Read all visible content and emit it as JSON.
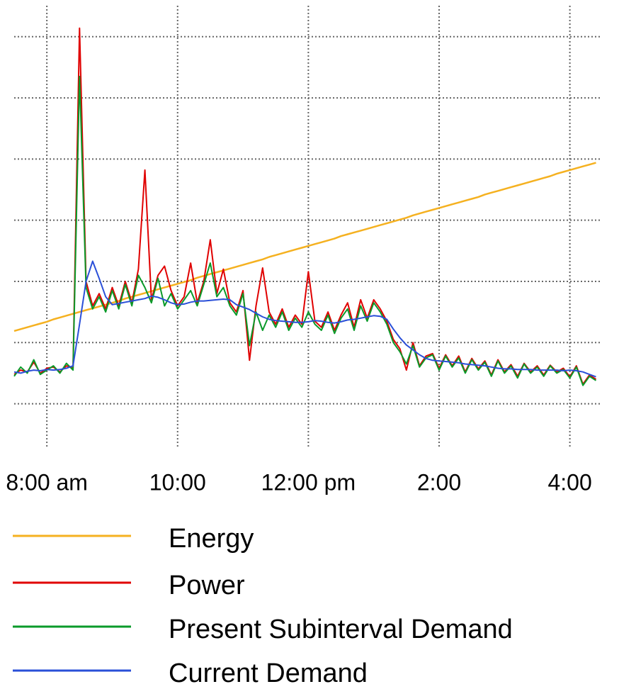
{
  "chart_data": {
    "type": "line",
    "x": [
      7.5,
      7.6,
      7.7,
      7.8,
      7.9,
      8.0,
      8.1,
      8.2,
      8.3,
      8.4,
      8.5,
      8.6,
      8.7,
      8.8,
      8.9,
      9.0,
      9.1,
      9.2,
      9.3,
      9.4,
      9.5,
      9.6,
      9.7,
      9.8,
      9.9,
      10.0,
      10.1,
      10.2,
      10.3,
      10.4,
      10.5,
      10.6,
      10.7,
      10.8,
      10.9,
      11.0,
      11.1,
      11.2,
      11.3,
      11.4,
      11.5,
      11.6,
      11.7,
      11.8,
      11.9,
      12.0,
      12.1,
      12.2,
      12.3,
      12.4,
      12.5,
      12.6,
      12.7,
      12.8,
      12.9,
      13.0,
      13.1,
      13.2,
      13.3,
      13.4,
      13.5,
      13.6,
      13.7,
      13.8,
      13.9,
      14.0,
      14.1,
      14.2,
      14.3,
      14.4,
      14.5,
      14.6,
      14.7,
      14.8,
      14.9,
      15.0,
      15.1,
      15.2,
      15.3,
      15.4,
      15.5,
      15.6,
      15.7,
      15.8,
      15.9,
      16.0,
      16.1,
      16.2,
      16.3,
      16.4
    ],
    "xlim": [
      7.5,
      16.47
    ],
    "xticks": [
      {
        "value": 8,
        "label": "8:00 am"
      },
      {
        "value": 10,
        "label": "10:00"
      },
      {
        "value": 12,
        "label": "12:00 pm"
      },
      {
        "value": 14,
        "label": "2:00"
      },
      {
        "value": 16,
        "label": "4:00"
      }
    ],
    "ylim": [
      0.3,
      7.6
    ],
    "yticks": [
      1,
      2,
      3,
      4,
      5,
      6,
      7
    ],
    "grid": true,
    "series": [
      {
        "name": "Energy",
        "color": "#f5b120",
        "values": [
          2.19,
          2.22,
          2.25,
          2.28,
          2.31,
          2.34,
          2.38,
          2.41,
          2.44,
          2.47,
          2.5,
          2.53,
          2.56,
          2.59,
          2.62,
          2.65,
          2.68,
          2.72,
          2.75,
          2.78,
          2.81,
          2.84,
          2.87,
          2.9,
          2.93,
          2.96,
          2.99,
          3.02,
          3.06,
          3.09,
          3.12,
          3.15,
          3.18,
          3.21,
          3.24,
          3.27,
          3.3,
          3.33,
          3.36,
          3.4,
          3.43,
          3.46,
          3.49,
          3.52,
          3.55,
          3.58,
          3.61,
          3.64,
          3.67,
          3.7,
          3.74,
          3.77,
          3.8,
          3.83,
          3.86,
          3.89,
          3.92,
          3.95,
          3.98,
          4.01,
          4.04,
          4.08,
          4.11,
          4.14,
          4.17,
          4.2,
          4.23,
          4.26,
          4.29,
          4.32,
          4.35,
          4.38,
          4.42,
          4.45,
          4.48,
          4.51,
          4.54,
          4.57,
          4.6,
          4.63,
          4.66,
          4.69,
          4.72,
          4.76,
          4.79,
          4.82,
          4.85,
          4.88,
          4.91,
          4.94
        ]
      },
      {
        "name": "Power",
        "color": "#e00000",
        "values": [
          1.48,
          1.55,
          1.52,
          1.68,
          1.5,
          1.58,
          1.6,
          1.52,
          1.62,
          1.58,
          7.14,
          3.0,
          2.6,
          2.8,
          2.55,
          2.9,
          2.6,
          3.0,
          2.65,
          3.2,
          4.82,
          2.7,
          3.1,
          3.25,
          2.85,
          2.6,
          2.75,
          3.3,
          2.65,
          3.0,
          3.68,
          2.8,
          3.2,
          2.65,
          2.5,
          2.85,
          1.71,
          2.6,
          3.22,
          2.5,
          2.3,
          2.55,
          2.25,
          2.45,
          2.3,
          3.16,
          2.35,
          2.25,
          2.5,
          2.2,
          2.45,
          2.65,
          2.25,
          2.7,
          2.4,
          2.7,
          2.55,
          2.35,
          2.05,
          1.9,
          1.55,
          2.0,
          1.62,
          1.78,
          1.82,
          1.58,
          1.8,
          1.62,
          1.78,
          1.52,
          1.74,
          1.57,
          1.7,
          1.47,
          1.72,
          1.52,
          1.64,
          1.45,
          1.66,
          1.52,
          1.62,
          1.47,
          1.63,
          1.52,
          1.58,
          1.44,
          1.62,
          1.32,
          1.47,
          1.4
        ]
      },
      {
        "name": "Present Subinterval Demand",
        "color": "#0a9a2a",
        "values": [
          1.45,
          1.6,
          1.5,
          1.72,
          1.48,
          1.55,
          1.62,
          1.5,
          1.66,
          1.55,
          6.35,
          2.9,
          2.55,
          2.75,
          2.5,
          2.85,
          2.55,
          2.95,
          2.6,
          3.1,
          2.9,
          2.65,
          3.05,
          2.6,
          2.8,
          2.55,
          2.7,
          2.85,
          2.6,
          2.95,
          3.3,
          2.75,
          2.9,
          2.6,
          2.45,
          2.8,
          1.95,
          2.5,
          2.2,
          2.45,
          2.25,
          2.5,
          2.2,
          2.4,
          2.25,
          2.5,
          2.3,
          2.2,
          2.45,
          2.15,
          2.4,
          2.55,
          2.2,
          2.6,
          2.35,
          2.65,
          2.5,
          2.3,
          2.0,
          1.85,
          1.65,
          1.95,
          1.6,
          1.75,
          1.8,
          1.55,
          1.78,
          1.6,
          1.75,
          1.5,
          1.72,
          1.55,
          1.68,
          1.45,
          1.7,
          1.5,
          1.62,
          1.42,
          1.65,
          1.5,
          1.6,
          1.45,
          1.62,
          1.5,
          1.56,
          1.42,
          1.6,
          1.3,
          1.45,
          1.38
        ]
      },
      {
        "name": "Current Demand",
        "color": "#2a4fd8",
        "values": [
          1.52,
          1.5,
          1.53,
          1.55,
          1.54,
          1.56,
          1.55,
          1.56,
          1.58,
          1.62,
          2.3,
          3.0,
          3.33,
          3.05,
          2.75,
          2.62,
          2.64,
          2.66,
          2.68,
          2.7,
          2.72,
          2.76,
          2.74,
          2.7,
          2.65,
          2.62,
          2.63,
          2.66,
          2.68,
          2.68,
          2.69,
          2.7,
          2.71,
          2.7,
          2.62,
          2.58,
          2.54,
          2.48,
          2.42,
          2.38,
          2.36,
          2.35,
          2.34,
          2.33,
          2.33,
          2.34,
          2.36,
          2.35,
          2.33,
          2.32,
          2.34,
          2.37,
          2.38,
          2.4,
          2.42,
          2.44,
          2.43,
          2.38,
          2.22,
          2.08,
          1.96,
          1.88,
          1.8,
          1.74,
          1.71,
          1.7,
          1.69,
          1.68,
          1.67,
          1.65,
          1.64,
          1.63,
          1.62,
          1.6,
          1.58,
          1.57,
          1.57,
          1.56,
          1.56,
          1.56,
          1.55,
          1.55,
          1.55,
          1.55,
          1.54,
          1.55,
          1.54,
          1.52,
          1.48,
          1.44
        ]
      }
    ]
  }
}
